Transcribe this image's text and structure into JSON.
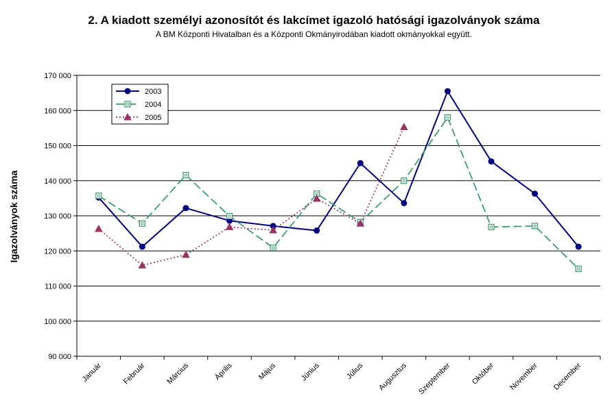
{
  "chart_data": {
    "type": "line",
    "title": "2. A kiadott személyi azonosítót és lakcímet igazoló hatósági igazolványok száma",
    "subtitle": "A BM Központi Hivatalban és a Központi Okmányirodában kiadott okmányokkal együtt.",
    "xlabel": "",
    "ylabel": "Igazolványok száma",
    "ylim": [
      90000,
      170000
    ],
    "yticks": [
      "90 000",
      "100 000",
      "110 000",
      "120 000",
      "130 000",
      "140 000",
      "150 000",
      "160 000",
      "170 000"
    ],
    "categories": [
      "Január",
      "Február",
      "Március",
      "Április",
      "Május",
      "Június",
      "Július",
      "Augusztus",
      "Szeptember",
      "Október",
      "November",
      "December"
    ],
    "grid": true,
    "legend_position": "top-left",
    "series": [
      {
        "name": "2003",
        "color": "#000080",
        "style": "solid",
        "marker": "circle",
        "values": [
          135200,
          121200,
          132200,
          128600,
          127100,
          125800,
          145000,
          133600,
          165500,
          145500,
          136300,
          121200
        ]
      },
      {
        "name": "2004",
        "color": "#339966",
        "style": "dashed",
        "marker": "square",
        "values": [
          135700,
          127800,
          141600,
          129900,
          120900,
          136300,
          128200,
          140000,
          158000,
          126800,
          127100,
          114900
        ]
      },
      {
        "name": "2005",
        "color": "#993366",
        "style": "dotted",
        "marker": "triangle",
        "values": [
          126300,
          115900,
          118900,
          126800,
          125900,
          134900,
          127800,
          155300,
          null,
          null,
          null,
          null
        ]
      }
    ]
  }
}
